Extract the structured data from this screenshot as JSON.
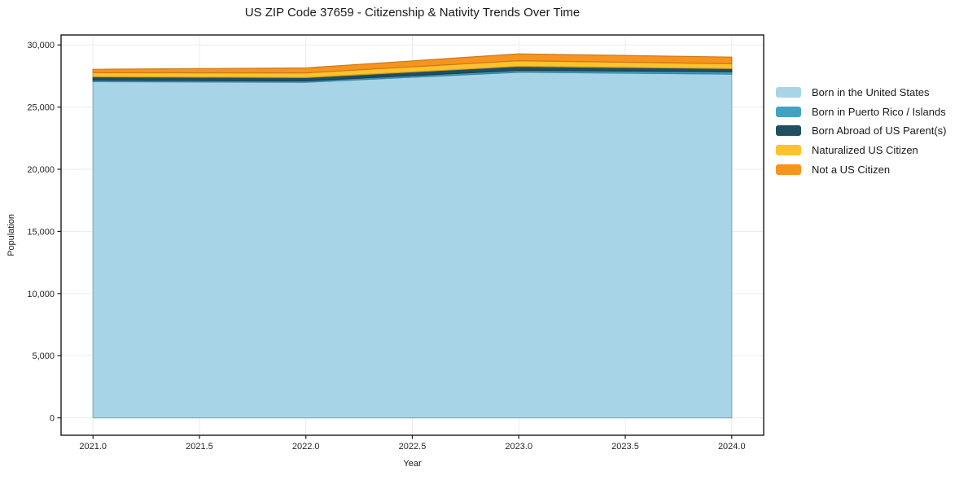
{
  "page": {
    "background": "#ffffff"
  },
  "chart_data": {
    "type": "area",
    "stacked": true,
    "title": "US ZIP Code 37659 - Citizenship & Nativity Trends Over Time",
    "xlabel": "Year",
    "ylabel": "Population",
    "x": [
      2021,
      2022,
      2023,
      2024
    ],
    "series": [
      {
        "name": "Born in the United States",
        "color": "#a8d4e8",
        "values": [
          27050,
          27000,
          27800,
          27650
        ]
      },
      {
        "name": "Born in Puerto Rico / Islands",
        "color": "#43a2c4",
        "values": [
          120,
          110,
          150,
          190
        ]
      },
      {
        "name": "Born Abroad of US Parent(s)",
        "color": "#1f4f63",
        "values": [
          270,
          270,
          330,
          260
        ]
      },
      {
        "name": "Naturalized US Citizen",
        "color": "#fcc32d",
        "values": [
          320,
          370,
          450,
          380
        ]
      },
      {
        "name": "Not a US Citizen",
        "color": "#f7941f",
        "values": [
          280,
          400,
          550,
          540
        ]
      }
    ],
    "totals": [
      28040,
      28150,
      29280,
      29020
    ],
    "x_ticks": [
      2021.0,
      2021.5,
      2022.0,
      2022.5,
      2023.0,
      2023.5,
      2024.0
    ],
    "x_tick_labels": [
      "2021.0",
      "2021.5",
      "2022.0",
      "2022.5",
      "2023.0",
      "2023.5",
      "2024.0"
    ],
    "y_ticks": [
      0,
      5000,
      10000,
      15000,
      20000,
      25000,
      30000
    ],
    "y_tick_labels": [
      "0",
      "5,000",
      "10,000",
      "15,000",
      "20,000",
      "25,000",
      "30,000"
    ],
    "xlim": [
      2020.85,
      2024.15
    ],
    "ylim": [
      -1400,
      30800
    ],
    "grid": true,
    "legend_position": "right-outside",
    "colors": {
      "grid": "#ececec",
      "spine": "#1a1a1a",
      "text": "#262626"
    }
  }
}
